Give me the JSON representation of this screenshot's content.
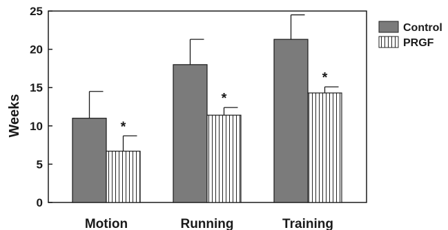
{
  "chart_data": {
    "type": "bar",
    "title": "",
    "xlabel": "",
    "ylabel": "Weeks",
    "ylim": [
      0,
      25
    ],
    "yticks": [
      0,
      5,
      10,
      15,
      20,
      25
    ],
    "categories": [
      "Motion",
      "Running",
      "Training"
    ],
    "series": [
      {
        "name": "Control",
        "fill": "solid-gray",
        "color": "#7b7b7b",
        "values": [
          11.0,
          18.0,
          21.3
        ],
        "error_upper": [
          14.5,
          21.3,
          24.5
        ],
        "significance": [
          "",
          "",
          ""
        ]
      },
      {
        "name": "PRGF",
        "fill": "vertical-stripes",
        "color": "#ffffff",
        "values": [
          6.7,
          11.4,
          14.3
        ],
        "error_upper": [
          8.7,
          12.4,
          15.1
        ],
        "significance": [
          "*",
          "*",
          "*"
        ]
      }
    ],
    "legend_position": "top-right-outside",
    "grid": false
  }
}
